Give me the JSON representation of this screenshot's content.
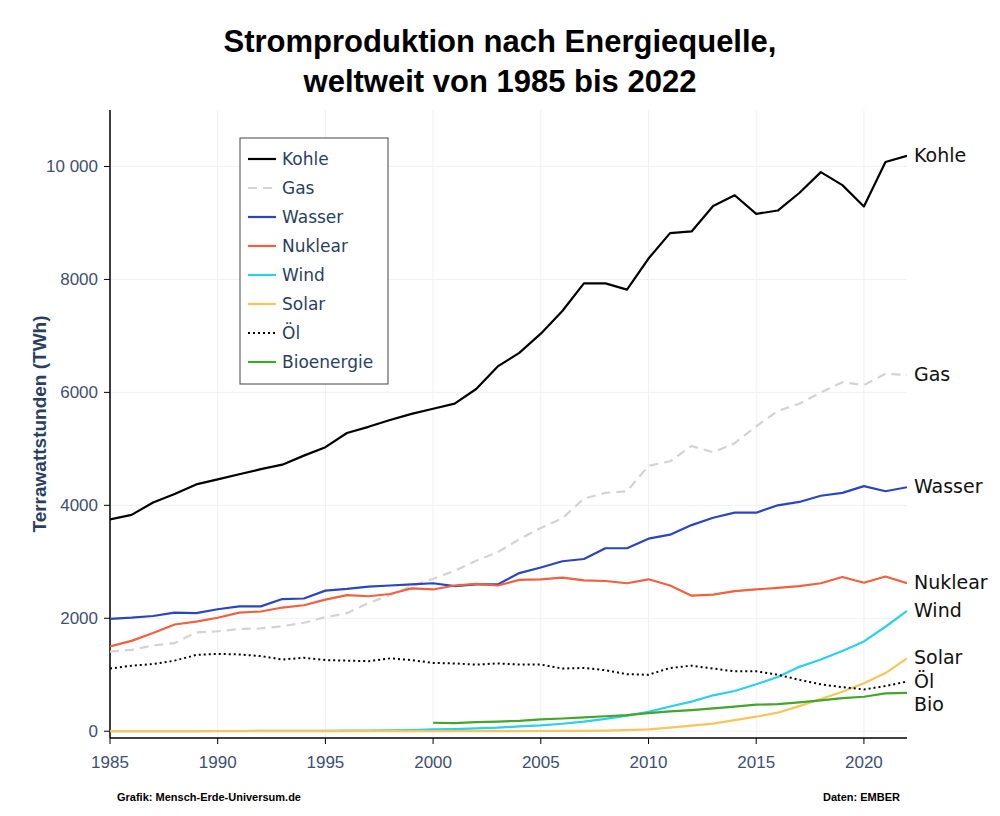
{
  "chart_data": {
    "type": "line",
    "title": [
      "Stromproduktion nach Energiequelle,",
      "weltweit von 1985 bis 2022"
    ],
    "y_label": "Terrawattstunden (TWh)",
    "credit": "Grafik: Mensch-Erde-Universum.de",
    "source": "Daten: EMBER",
    "x": [
      1985,
      1986,
      1987,
      1988,
      1989,
      1990,
      1991,
      1992,
      1993,
      1994,
      1995,
      1996,
      1997,
      1998,
      1999,
      2000,
      2001,
      2002,
      2003,
      2004,
      2005,
      2006,
      2007,
      2008,
      2009,
      2010,
      2011,
      2012,
      2013,
      2014,
      2015,
      2016,
      2017,
      2018,
      2019,
      2020,
      2021,
      2022
    ],
    "xlim": [
      1985,
      2022
    ],
    "xticks": [
      1985,
      1990,
      1995,
      2000,
      2005,
      2010,
      2015,
      2020
    ],
    "ylim": [
      -120,
      11000
    ],
    "yticks": [
      0,
      2000,
      4000,
      6000,
      8000,
      {
        "value": 10000,
        "label": "10 000"
      }
    ],
    "grid": true,
    "legend": "top-left",
    "series": [
      {
        "name": "Kohle",
        "label": "Kohle",
        "color": "#000000",
        "line_style": "solid",
        "values": [
          3750,
          3830,
          4050,
          4200,
          4370,
          4460,
          4550,
          4640,
          4720,
          4880,
          5030,
          5280,
          5390,
          5510,
          5620,
          5710,
          5800,
          6060,
          6460,
          6700,
          7040,
          7440,
          7930,
          7930,
          7820,
          8370,
          8820,
          8850,
          9300,
          9490,
          9160,
          9220,
          9530,
          9900,
          9670,
          9290,
          10080,
          10190
        ]
      },
      {
        "name": "Gas",
        "label": "Gas",
        "color": "#d3d3d3",
        "line_style": "dashed",
        "values": [
          1410,
          1440,
          1520,
          1560,
          1750,
          1770,
          1810,
          1820,
          1860,
          1920,
          2020,
          2090,
          2270,
          2410,
          2570,
          2700,
          2840,
          3020,
          3170,
          3400,
          3600,
          3770,
          4120,
          4220,
          4250,
          4700,
          4780,
          5050,
          4940,
          5100,
          5400,
          5670,
          5800,
          6000,
          6180,
          6130,
          6330,
          6310
        ]
      },
      {
        "name": "Wasser",
        "label": "Wasser",
        "color": "#2a45c2",
        "line_style": "solid",
        "values": [
          1990,
          2010,
          2040,
          2100,
          2090,
          2160,
          2210,
          2210,
          2340,
          2350,
          2490,
          2520,
          2560,
          2580,
          2600,
          2620,
          2570,
          2600,
          2600,
          2800,
          2900,
          3010,
          3050,
          3240,
          3240,
          3410,
          3480,
          3650,
          3780,
          3870,
          3870,
          4000,
          4060,
          4170,
          4220,
          4340,
          4250,
          4320
        ]
      },
      {
        "name": "Nuklear",
        "label": "Nuklear",
        "color": "#f2603d",
        "line_style": "solid",
        "values": [
          1500,
          1600,
          1740,
          1890,
          1940,
          2010,
          2100,
          2120,
          2190,
          2230,
          2330,
          2410,
          2390,
          2430,
          2530,
          2510,
          2580,
          2610,
          2580,
          2680,
          2690,
          2720,
          2670,
          2660,
          2620,
          2690,
          2580,
          2400,
          2420,
          2480,
          2510,
          2540,
          2570,
          2620,
          2730,
          2630,
          2740,
          2620
        ]
      },
      {
        "name": "Wind",
        "label": "Wind",
        "color": "#2ad0ee",
        "line_style": "solid",
        "values": [
          0,
          0,
          0,
          0,
          0,
          4,
          4,
          5,
          6,
          7,
          8,
          10,
          12,
          16,
          21,
          31,
          38,
          52,
          63,
          85,
          104,
          132,
          170,
          220,
          276,
          342,
          438,
          524,
          636,
          712,
          831,
          960,
          1140,
          1270,
          1420,
          1590,
          1850,
          2130
        ]
      },
      {
        "name": "Solar",
        "label": "Solar",
        "color": "#f8c55a",
        "line_style": "solid",
        "values": [
          0,
          0,
          0,
          0,
          0,
          0,
          0,
          0,
          0,
          0,
          0,
          0,
          0,
          0,
          0,
          1,
          1,
          2,
          2,
          3,
          4,
          5,
          7,
          12,
          20,
          32,
          64,
          100,
          136,
          198,
          257,
          328,
          445,
          570,
          700,
          850,
          1030,
          1290
        ]
      },
      {
        "name": "Öl",
        "label": "Öl",
        "color": "#000000",
        "line_style": "dotted",
        "values": [
          1110,
          1160,
          1190,
          1250,
          1350,
          1370,
          1360,
          1330,
          1270,
          1300,
          1260,
          1250,
          1240,
          1290,
          1260,
          1210,
          1200,
          1180,
          1200,
          1180,
          1180,
          1110,
          1120,
          1080,
          1010,
          1000,
          1120,
          1160,
          1110,
          1060,
          1060,
          1000,
          910,
          830,
          780,
          740,
          800,
          880
        ]
      },
      {
        "name": "Bioenergie",
        "label": "Bio",
        "color": "#43a628",
        "line_style": "solid",
        "values": [
          null,
          null,
          null,
          null,
          null,
          null,
          null,
          null,
          null,
          null,
          null,
          null,
          null,
          null,
          null,
          150,
          145,
          160,
          170,
          185,
          210,
          225,
          245,
          265,
          285,
          320,
          350,
          375,
          405,
          435,
          470,
          480,
          510,
          545,
          585,
          610,
          670,
          680
        ]
      }
    ]
  }
}
